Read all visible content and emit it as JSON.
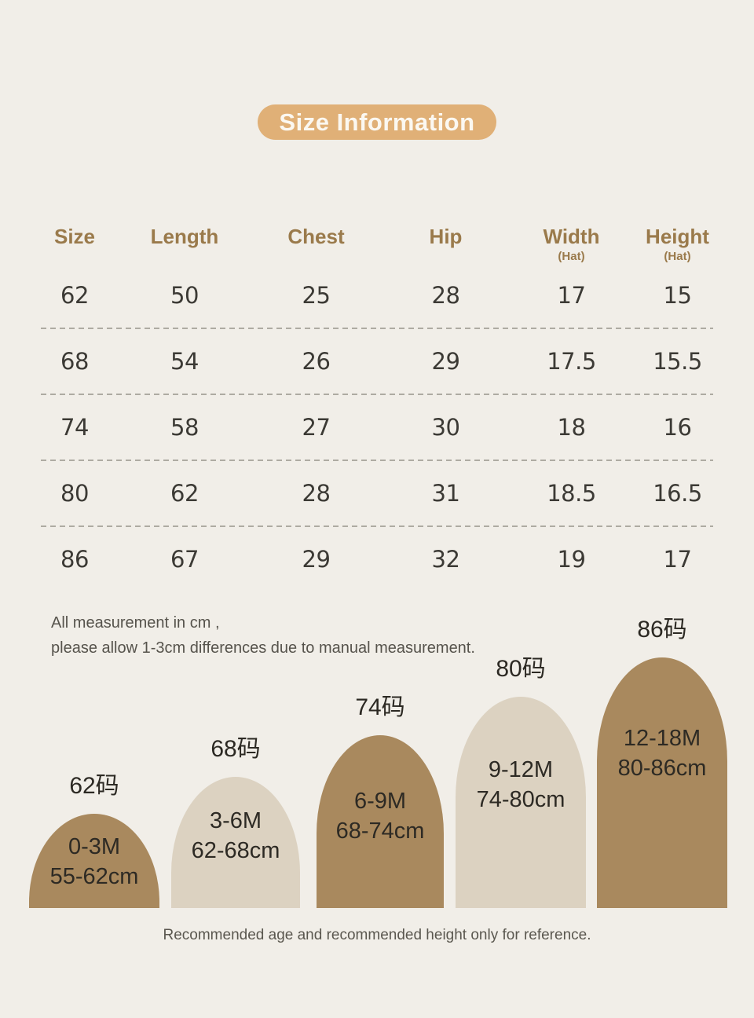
{
  "title": "Size Information",
  "table": {
    "headers": [
      {
        "label": "Size",
        "sub": ""
      },
      {
        "label": "Length",
        "sub": ""
      },
      {
        "label": "Chest",
        "sub": ""
      },
      {
        "label": "Hip",
        "sub": ""
      },
      {
        "label": "Width",
        "sub": "(Hat)"
      },
      {
        "label": "Height",
        "sub": "(Hat)"
      }
    ],
    "rows": [
      [
        "62",
        "50",
        "25",
        "28",
        "17",
        "15"
      ],
      [
        "68",
        "54",
        "26",
        "29",
        "17.5",
        "15.5"
      ],
      [
        "74",
        "58",
        "27",
        "30",
        "18",
        "16"
      ],
      [
        "80",
        "62",
        "28",
        "31",
        "18.5",
        "16.5"
      ],
      [
        "86",
        "67",
        "29",
        "32",
        "19",
        "17"
      ]
    ]
  },
  "notes": {
    "line1": "All measurement in cm ,",
    "line2": "please allow 1-3cm differences due to manual measurement."
  },
  "size_chart": {
    "arches": [
      {
        "label": "62码",
        "age": "0-3M",
        "height_range": "55-62cm",
        "color": "#a9895e"
      },
      {
        "label": "68码",
        "age": "3-6M",
        "height_range": "62-68cm",
        "color": "#dcd2c1"
      },
      {
        "label": "74码",
        "age": "6-9M",
        "height_range": "68-74cm",
        "color": "#a9895e"
      },
      {
        "label": "80码",
        "age": "9-12M",
        "height_range": "74-80cm",
        "color": "#dcd2c1"
      },
      {
        "label": "86码",
        "age": "12-18M",
        "height_range": "80-86cm",
        "color": "#a9895e"
      }
    ],
    "caption": "Recommended age and recommended height only for reference."
  },
  "colors": {
    "background": "#f1eee8",
    "title_pill": "#e0b077",
    "title_text": "#fbf8f1",
    "header_text": "#9a7a4b",
    "number_text": "#3c3a35",
    "separator": "#aeaba2",
    "arch_brown": "#a9895e",
    "arch_beige": "#dcd2c1",
    "arch_text": "#2d2a24"
  }
}
